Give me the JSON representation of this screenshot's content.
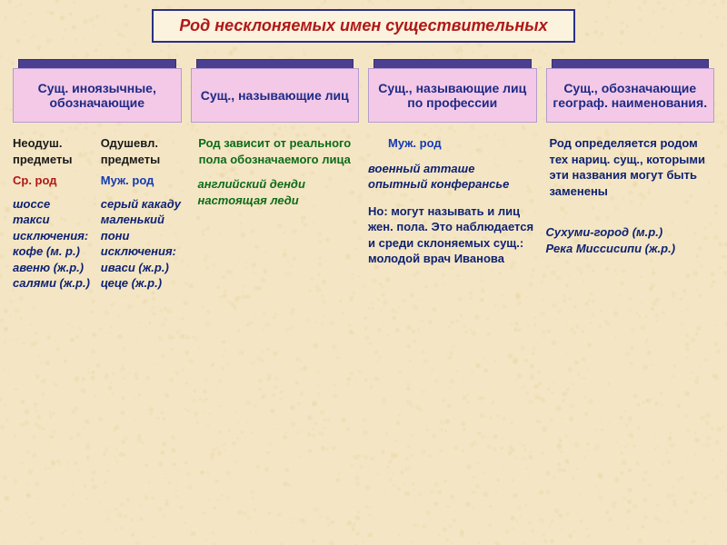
{
  "background": {
    "color": "#f4e6c4",
    "mottle": "#e9d29f"
  },
  "title": {
    "text": "Род несклоняемых имен существительных",
    "color": "#b11818",
    "border": "#2b2f87"
  },
  "category_style": {
    "cap_bg": "#4a3f91",
    "label_bg": "#f3c9e7"
  },
  "categories": [
    {
      "label": "Сущ. иноязычные, обозначающие"
    },
    {
      "label": "Сущ., называющие лиц"
    },
    {
      "label": "Сущ., называющие лиц по профессии"
    },
    {
      "label": "Сущ., обозначающие географ. наименования."
    }
  ],
  "col1": {
    "left": {
      "header": "Неодуш. предметы",
      "sub": "Ср. род",
      "examples": "шоссе\nтакси\nисключения:\nкофе (м. р.)\nавеню (ж.р.)\nсалями (ж.р.)"
    },
    "right": {
      "header": "Одушевл. предметы",
      "sub": "Муж. род",
      "examples": "серый какаду\nмаленький пони\nисключения:\nиваси (ж.р.)\nцеце (ж.р.)"
    }
  },
  "col2": {
    "note": "Род зависит от реального пола обозначаемого лица",
    "examples": "английский денди\nнастоящая леди"
  },
  "col3": {
    "sub": "Муж. род",
    "examples": "военный атташе\nопытный конферансье",
    "body": "Но: могут называть и лиц жен. пола. Это наблюдается и среди склоняемых сущ.:\nмолодой врач Иванова"
  },
  "col4": {
    "body": "Род определяется родом тех нариц. сущ., которыми эти названия могут быть заменены",
    "examples": "Сухуми-город (м.р.)\nРека Миссисипи (ж.р.)"
  }
}
